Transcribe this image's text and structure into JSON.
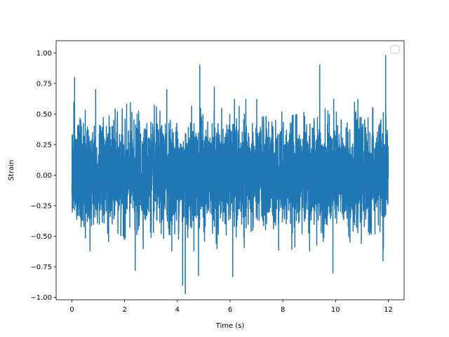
{
  "chart_data": {
    "type": "line",
    "title": "",
    "xlabel": "Time (s)",
    "ylabel": "Strain",
    "xlim": [
      -0.6,
      12.6
    ],
    "ylim": [
      -1.02,
      1.1
    ],
    "xticks": [
      0,
      2,
      4,
      6,
      8,
      10,
      12
    ],
    "xtick_labels": [
      "0",
      "2",
      "4",
      "6",
      "8",
      "10",
      "12"
    ],
    "yticks": [
      -1.0,
      -0.75,
      -0.5,
      -0.25,
      0.0,
      0.25,
      0.5,
      0.75,
      1.0
    ],
    "ytick_labels": [
      "−1.00",
      "−0.75",
      "−0.50",
      "−0.25",
      "0.00",
      "0.25",
      "0.50",
      "0.75",
      "1.00"
    ],
    "grid": false,
    "legend": {
      "placement": "top-right",
      "entries": []
    },
    "series": [
      {
        "color": "#1f77b4",
        "x_range": [
          0,
          12
        ],
        "peaks": [
          {
            "x": 0.1,
            "y": 0.8
          },
          {
            "x": 0.9,
            "y": 0.7
          },
          {
            "x": 3.6,
            "y": 0.7
          },
          {
            "x": 4.85,
            "y": 0.9
          },
          {
            "x": 5.4,
            "y": 0.72
          },
          {
            "x": 9.4,
            "y": 0.9
          },
          {
            "x": 11.9,
            "y": 0.98
          }
        ],
        "troughs": [
          {
            "x": 2.4,
            "y": -0.78
          },
          {
            "x": 4.2,
            "y": -0.9
          },
          {
            "x": 4.3,
            "y": -0.97
          },
          {
            "x": 4.8,
            "y": -0.82
          },
          {
            "x": 6.1,
            "y": -0.83
          },
          {
            "x": 9.9,
            "y": -0.8
          },
          {
            "x": 11.8,
            "y": -0.7
          }
        ],
        "envelope": {
          "typical_max": 0.5,
          "typical_min": -0.5
        }
      }
    ]
  }
}
